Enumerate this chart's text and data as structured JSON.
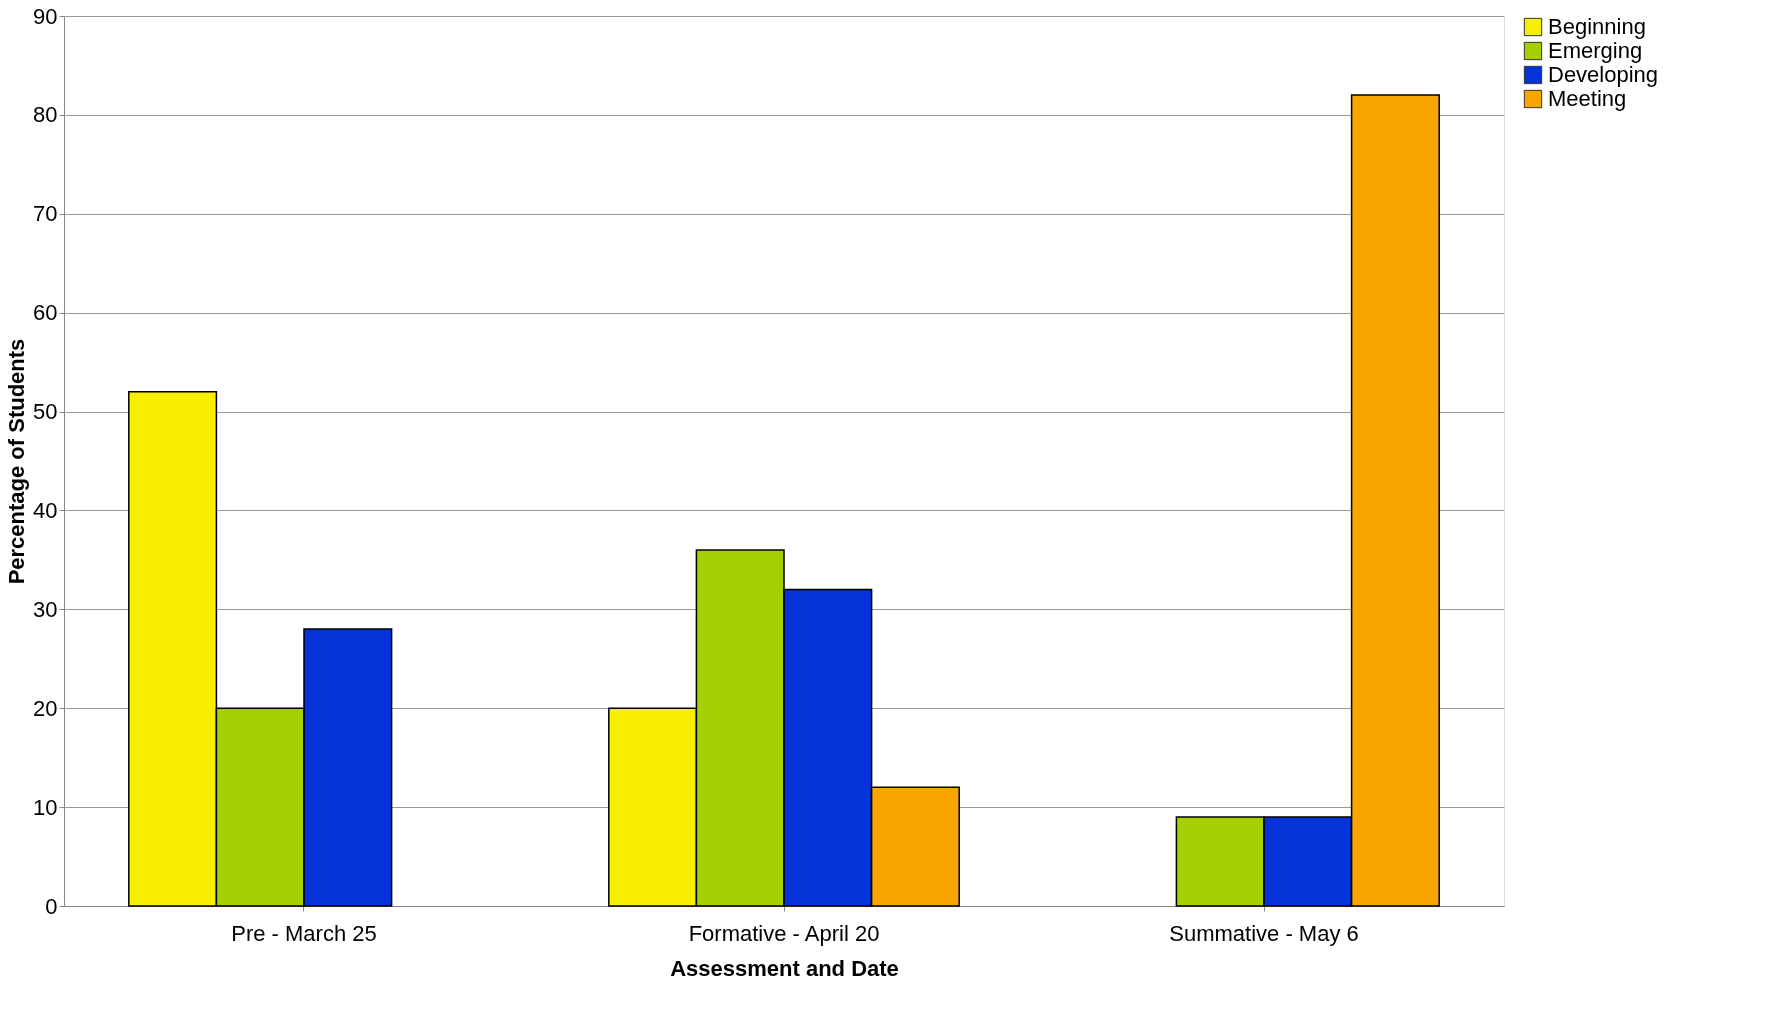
{
  "chart_data": {
    "type": "bar",
    "xlabel": "Assessment and Date",
    "ylabel": "Percentage of Students",
    "categories": [
      "Pre - March 25",
      "Formative - April 20",
      "Summative - May 6"
    ],
    "series": [
      {
        "name": "Beginning",
        "color": "#f7ee00",
        "values": [
          52,
          20,
          null
        ]
      },
      {
        "name": "Emerging",
        "color": "#a5cf00",
        "values": [
          20,
          36,
          9
        ]
      },
      {
        "name": "Developing",
        "color": "#0433d9",
        "values": [
          28,
          32,
          9
        ]
      },
      {
        "name": "Meeting",
        "color": "#f9a500",
        "values": [
          null,
          12,
          82
        ]
      }
    ],
    "ylim": [
      0,
      90
    ],
    "yticks": [
      0,
      10,
      20,
      30,
      40,
      50,
      60,
      70,
      80,
      90
    ],
    "grid": "y",
    "legend": "right"
  }
}
